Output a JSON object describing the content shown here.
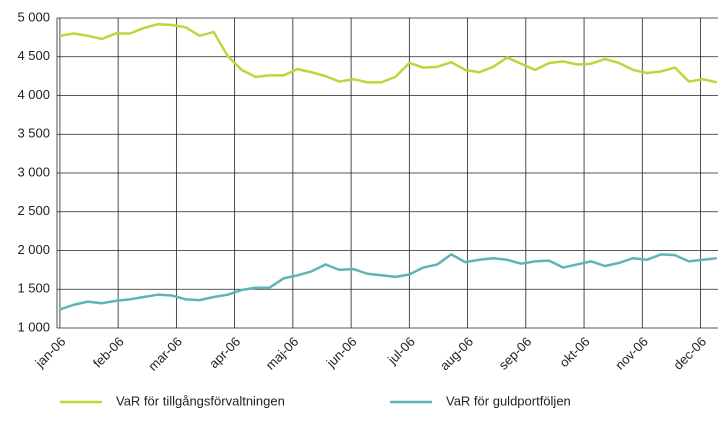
{
  "chart_data": {
    "type": "line",
    "x": [
      0,
      0.24,
      0.48,
      0.72,
      0.96,
      1.2,
      1.44,
      1.68,
      1.92,
      2.16,
      2.4,
      2.64,
      2.88,
      3.12,
      3.36,
      3.6,
      3.84,
      4.08,
      4.32,
      4.56,
      4.8,
      5.04,
      5.28,
      5.52,
      5.76,
      6,
      6.24,
      6.48,
      6.72,
      6.96,
      7.2,
      7.44,
      7.68,
      7.92,
      8.16,
      8.4,
      8.64,
      8.88,
      9.12,
      9.36,
      9.6,
      9.84,
      10.08,
      10.32,
      10.56,
      10.8,
      11.04,
      11.28
    ],
    "series": [
      {
        "name": "VaR för tillgångsförvaltningen",
        "color": "#bcd63c",
        "values": [
          4770,
          4800,
          4770,
          4730,
          4800,
          4800,
          4870,
          4920,
          4910,
          4880,
          4770,
          4820,
          4510,
          4330,
          4240,
          4260,
          4260,
          4340,
          4300,
          4250,
          4180,
          4210,
          4170,
          4170,
          4240,
          4420,
          4360,
          4370,
          4430,
          4330,
          4300,
          4370,
          4490,
          4410,
          4330,
          4420,
          4440,
          4400,
          4410,
          4470,
          4420,
          4330,
          4290,
          4310,
          4360,
          4180,
          4210,
          4170
        ]
      },
      {
        "name": "VaR för guldportföljen",
        "color": "#5fb5b5",
        "values": [
          1240,
          1300,
          1340,
          1320,
          1350,
          1370,
          1400,
          1430,
          1420,
          1370,
          1360,
          1400,
          1430,
          1490,
          1520,
          1520,
          1640,
          1680,
          1730,
          1820,
          1750,
          1760,
          1700,
          1680,
          1660,
          1690,
          1780,
          1820,
          1950,
          1850,
          1880,
          1900,
          1880,
          1830,
          1860,
          1870,
          1780,
          1820,
          1860,
          1800,
          1840,
          1900,
          1880,
          1950,
          1940,
          1860,
          1880,
          1900
        ]
      }
    ],
    "xlim": [
      -0.05,
      11.3
    ],
    "xticks": [
      {
        "value": 0,
        "label": "jan-06"
      },
      {
        "value": 1,
        "label": "feb-06"
      },
      {
        "value": 2,
        "label": "mar-06"
      },
      {
        "value": 3,
        "label": "apr-06"
      },
      {
        "value": 4,
        "label": "maj-06"
      },
      {
        "value": 5,
        "label": "jun-06"
      },
      {
        "value": 6,
        "label": "jul-06"
      },
      {
        "value": 7,
        "label": "aug-06"
      },
      {
        "value": 8,
        "label": "sep-06"
      },
      {
        "value": 9,
        "label": "okt-06"
      },
      {
        "value": 10,
        "label": "nov-06"
      },
      {
        "value": 11,
        "label": "dec-06"
      }
    ],
    "ylim": [
      1000,
      5000
    ],
    "yticks": [
      {
        "value": 1000,
        "label": "1 000"
      },
      {
        "value": 1500,
        "label": "1 500"
      },
      {
        "value": 2000,
        "label": "2 000"
      },
      {
        "value": 2500,
        "label": "2 500"
      },
      {
        "value": 3000,
        "label": "3 000"
      },
      {
        "value": 3500,
        "label": "3 500"
      },
      {
        "value": 4000,
        "label": "4 000"
      },
      {
        "value": 4500,
        "label": "4 500"
      },
      {
        "value": 5000,
        "label": "5 000"
      }
    ],
    "grid": true
  }
}
